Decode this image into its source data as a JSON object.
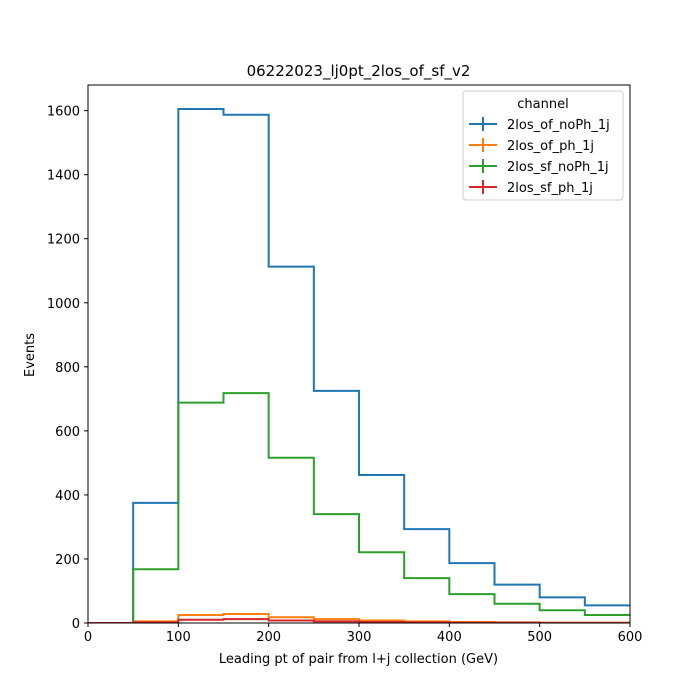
{
  "chart_data": {
    "type": "line",
    "subtype": "step-histogram",
    "title": "06222023_lj0pt_2los_of_sf_v2",
    "xlabel": "Leading pt of pair from l+j collection (GeV)",
    "ylabel": "Events",
    "xlim": [
      0,
      600
    ],
    "ylim": [
      0,
      1680
    ],
    "xticks": [
      0,
      100,
      200,
      300,
      400,
      500,
      600
    ],
    "yticks": [
      0,
      200,
      400,
      600,
      800,
      1000,
      1200,
      1400,
      1600
    ],
    "bin_edges": [
      0,
      50,
      100,
      150,
      200,
      250,
      300,
      350,
      400,
      450,
      500,
      550,
      600
    ],
    "grid": false,
    "legend": {
      "title": "channel",
      "position": "top-right"
    },
    "series": [
      {
        "name": "2los_of_noPh_1j",
        "color": "#1f77b4",
        "values": [
          0,
          375,
          1605,
          1587,
          1113,
          725,
          462,
          293,
          187,
          120,
          80,
          55
        ]
      },
      {
        "name": "2los_of_ph_1j",
        "color": "#ff7f0e",
        "values": [
          0,
          5,
          25,
          28,
          18,
          12,
          8,
          5,
          3,
          2,
          1,
          1
        ]
      },
      {
        "name": "2los_sf_noPh_1j",
        "color": "#2ca02c",
        "values": [
          0,
          168,
          688,
          718,
          516,
          340,
          221,
          140,
          90,
          60,
          40,
          25
        ]
      },
      {
        "name": "2los_sf_ph_1j",
        "color": "#d62728",
        "values": [
          0,
          2,
          10,
          12,
          8,
          5,
          3,
          2,
          1,
          1,
          0,
          0
        ]
      }
    ]
  }
}
